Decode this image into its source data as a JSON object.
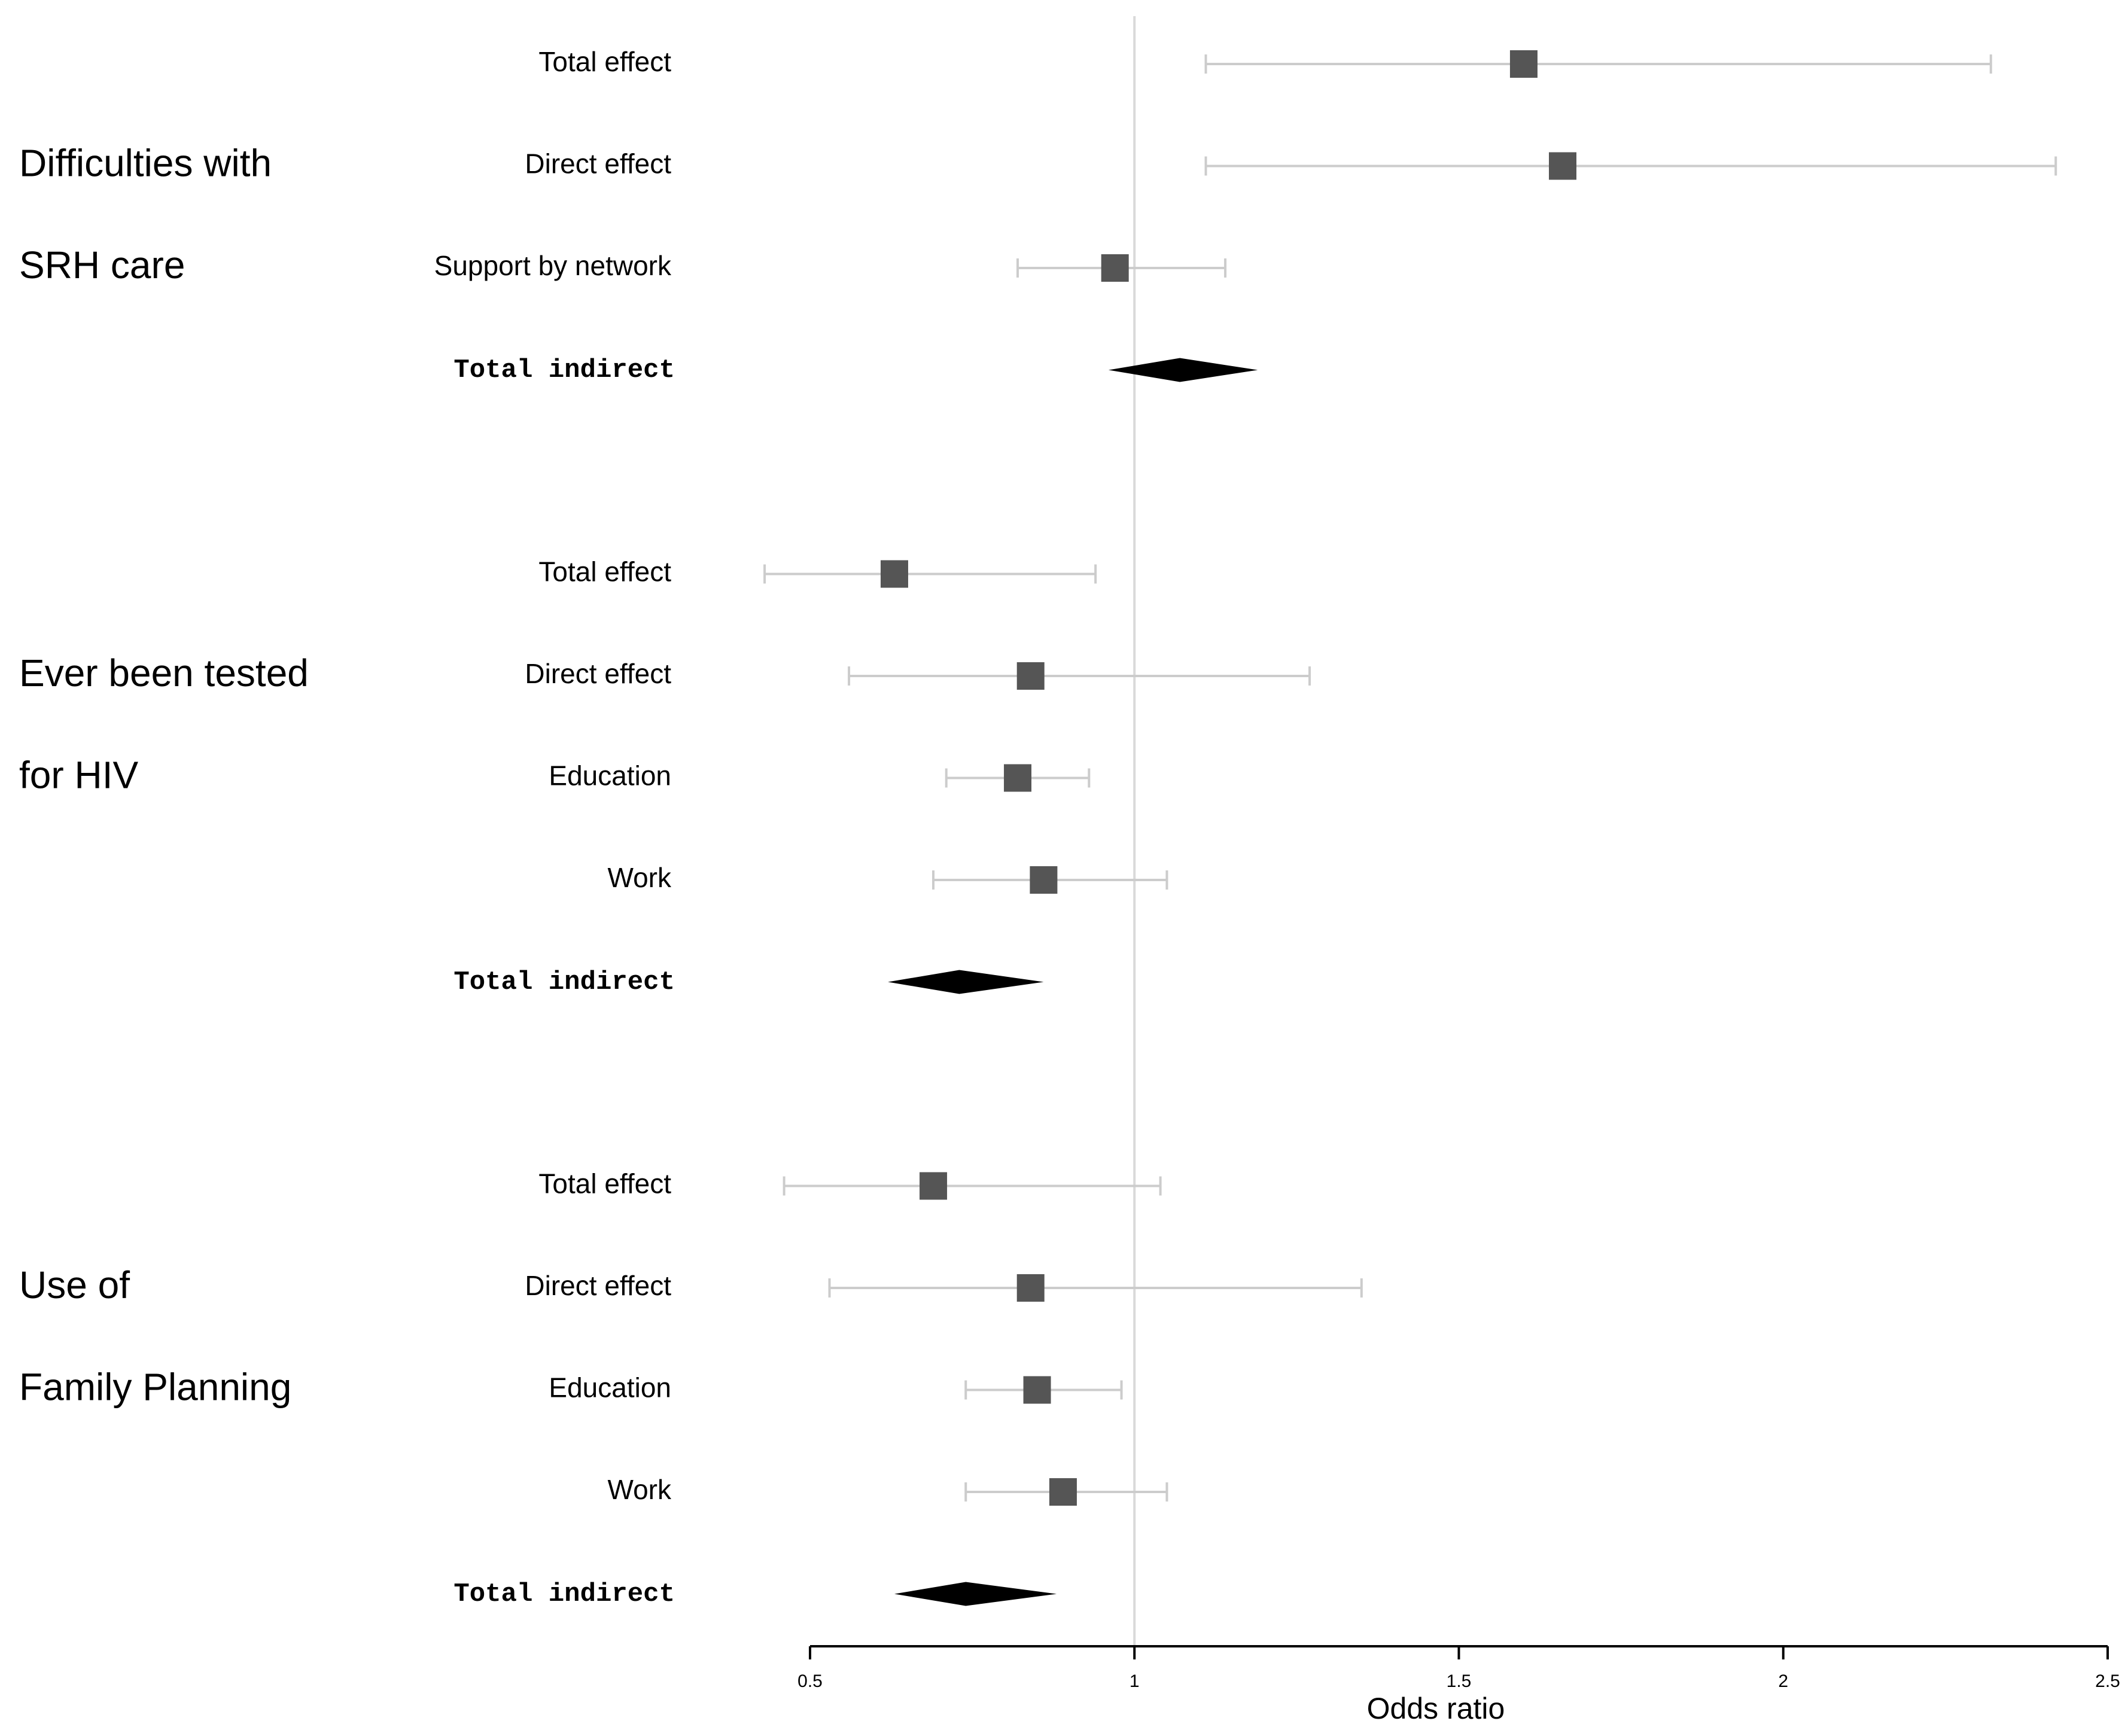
{
  "chart_data": {
    "type": "forest",
    "xlabel": "Odds ratio",
    "xlim": [
      0.5,
      2.5
    ],
    "xticks": [
      0.5,
      1,
      1.5,
      2,
      2.5
    ],
    "refline": 1,
    "ci_color": "#cccccc",
    "marker_color": "#555555",
    "summary_color": "#000000",
    "groups": [
      {
        "label": [
          "Difficulties with",
          "SRH care"
        ],
        "rows": [
          {
            "label": "Total effect",
            "marker": "square",
            "estimate": 1.6,
            "lower": 1.11,
            "upper": 2.32
          },
          {
            "label": "Direct effect",
            "marker": "square",
            "estimate": 1.66,
            "lower": 1.11,
            "upper": 2.42
          },
          {
            "label": "Support by network",
            "marker": "square",
            "estimate": 0.97,
            "lower": 0.82,
            "upper": 1.14
          },
          {
            "label": "Total indirect",
            "marker": "diamond",
            "estimate": 1.07,
            "lower": 0.96,
            "upper": 1.19
          }
        ]
      },
      {
        "label": [
          "Ever been tested",
          "for HIV"
        ],
        "rows": [
          {
            "label": "Total effect",
            "marker": "square",
            "estimate": 0.63,
            "lower": 0.43,
            "upper": 0.94
          },
          {
            "label": "Direct effect",
            "marker": "square",
            "estimate": 0.84,
            "lower": 0.56,
            "upper": 1.27
          },
          {
            "label": "Education",
            "marker": "square",
            "estimate": 0.82,
            "lower": 0.71,
            "upper": 0.93
          },
          {
            "label": "Work",
            "marker": "square",
            "estimate": 0.86,
            "lower": 0.69,
            "upper": 1.05
          },
          {
            "label": "Total indirect",
            "marker": "diamond",
            "estimate": 0.73,
            "lower": 0.62,
            "upper": 0.86
          }
        ]
      },
      {
        "label": [
          "Use of",
          "Family Planning"
        ],
        "rows": [
          {
            "label": "Total effect",
            "marker": "square",
            "estimate": 0.69,
            "lower": 0.46,
            "upper": 1.04
          },
          {
            "label": "Direct effect",
            "marker": "square",
            "estimate": 0.84,
            "lower": 0.53,
            "upper": 1.35
          },
          {
            "label": "Education",
            "marker": "square",
            "estimate": 0.85,
            "lower": 0.74,
            "upper": 0.98
          },
          {
            "label": "Work",
            "marker": "square",
            "estimate": 0.89,
            "lower": 0.74,
            "upper": 1.05
          },
          {
            "label": "Total indirect",
            "marker": "diamond",
            "estimate": 0.74,
            "lower": 0.63,
            "upper": 0.88
          }
        ]
      }
    ]
  }
}
